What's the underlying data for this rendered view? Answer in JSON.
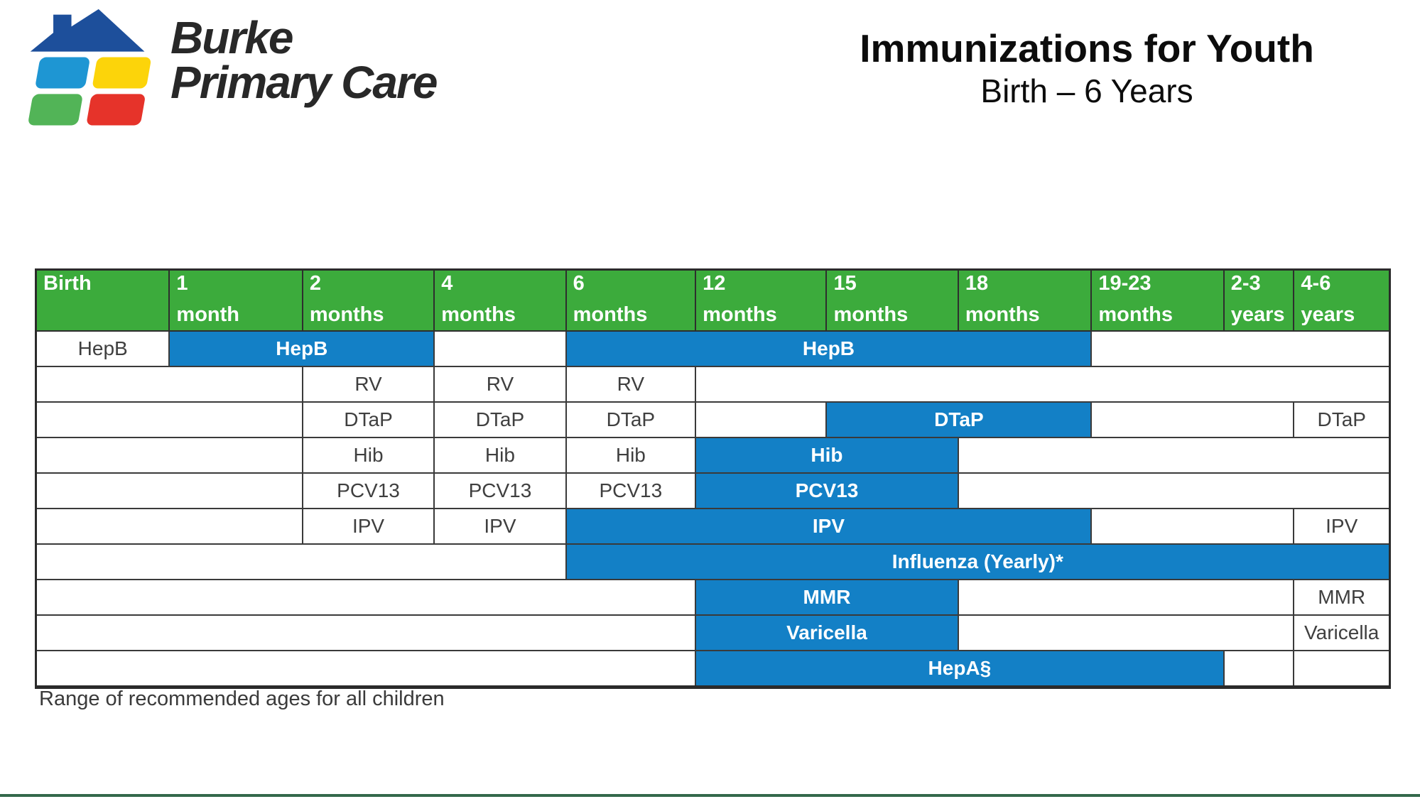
{
  "logo": {
    "line1": "Burke",
    "line2": "Primary Care"
  },
  "title": {
    "heading": "Immunizations for Youth",
    "subheading": "Birth – 6 Years"
  },
  "schedule_table": {
    "columns": [
      {
        "line1": "Birth",
        "line2": ""
      },
      {
        "line1": "1",
        "line2": "month"
      },
      {
        "line1": "2",
        "line2": "months"
      },
      {
        "line1": "4",
        "line2": "months"
      },
      {
        "line1": "6",
        "line2": "months"
      },
      {
        "line1": "12",
        "line2": "months"
      },
      {
        "line1": "15",
        "line2": "months"
      },
      {
        "line1": "18",
        "line2": "months"
      },
      {
        "line1": "19-23",
        "line2": "months"
      },
      {
        "line1": "2-3",
        "line2": "years"
      },
      {
        "line1": "4-6",
        "line2": "years"
      }
    ],
    "rows": [
      {
        "vaccine": "HepB",
        "cells": [
          {
            "span": 1,
            "kind": "label",
            "text": "HepB"
          },
          {
            "span": 2,
            "kind": "bar",
            "text": "HepB"
          },
          {
            "span": 1,
            "kind": "empty",
            "text": ""
          },
          {
            "span": 4,
            "kind": "bar",
            "text": "HepB"
          },
          {
            "span": 3,
            "kind": "empty",
            "text": ""
          }
        ]
      },
      {
        "vaccine": "RV",
        "cells": [
          {
            "span": 2,
            "kind": "empty",
            "text": ""
          },
          {
            "span": 1,
            "kind": "label",
            "text": "RV"
          },
          {
            "span": 1,
            "kind": "label",
            "text": "RV"
          },
          {
            "span": 1,
            "kind": "label",
            "text": "RV"
          },
          {
            "span": 6,
            "kind": "empty",
            "text": ""
          }
        ]
      },
      {
        "vaccine": "DTaP",
        "cells": [
          {
            "span": 2,
            "kind": "empty",
            "text": ""
          },
          {
            "span": 1,
            "kind": "label",
            "text": "DTaP"
          },
          {
            "span": 1,
            "kind": "label",
            "text": "DTaP"
          },
          {
            "span": 1,
            "kind": "label",
            "text": "DTaP"
          },
          {
            "span": 1,
            "kind": "empty",
            "text": ""
          },
          {
            "span": 2,
            "kind": "bar",
            "text": "DTaP"
          },
          {
            "span": 2,
            "kind": "empty",
            "text": ""
          },
          {
            "span": 1,
            "kind": "label",
            "text": "DTaP"
          }
        ]
      },
      {
        "vaccine": "Hib",
        "cells": [
          {
            "span": 2,
            "kind": "empty",
            "text": ""
          },
          {
            "span": 1,
            "kind": "label",
            "text": "Hib"
          },
          {
            "span": 1,
            "kind": "label",
            "text": "Hib"
          },
          {
            "span": 1,
            "kind": "label",
            "text": "Hib"
          },
          {
            "span": 2,
            "kind": "bar",
            "text": "Hib"
          },
          {
            "span": 4,
            "kind": "empty",
            "text": ""
          }
        ]
      },
      {
        "vaccine": "PCV13",
        "cells": [
          {
            "span": 2,
            "kind": "empty",
            "text": ""
          },
          {
            "span": 1,
            "kind": "label",
            "text": "PCV13"
          },
          {
            "span": 1,
            "kind": "label",
            "text": "PCV13"
          },
          {
            "span": 1,
            "kind": "label",
            "text": "PCV13"
          },
          {
            "span": 2,
            "kind": "bar",
            "text": "PCV13"
          },
          {
            "span": 4,
            "kind": "empty",
            "text": ""
          }
        ]
      },
      {
        "vaccine": "IPV",
        "cells": [
          {
            "span": 2,
            "kind": "empty",
            "text": ""
          },
          {
            "span": 1,
            "kind": "label",
            "text": "IPV"
          },
          {
            "span": 1,
            "kind": "label",
            "text": "IPV"
          },
          {
            "span": 4,
            "kind": "bar",
            "text": "IPV"
          },
          {
            "span": 2,
            "kind": "empty",
            "text": ""
          },
          {
            "span": 1,
            "kind": "label",
            "text": "IPV"
          }
        ]
      },
      {
        "vaccine": "Influenza",
        "cells": [
          {
            "span": 4,
            "kind": "empty",
            "text": ""
          },
          {
            "span": 7,
            "kind": "bar",
            "text": "Influenza (Yearly)*"
          }
        ]
      },
      {
        "vaccine": "MMR",
        "cells": [
          {
            "span": 5,
            "kind": "empty",
            "text": ""
          },
          {
            "span": 2,
            "kind": "bar",
            "text": "MMR"
          },
          {
            "span": 3,
            "kind": "empty",
            "text": ""
          },
          {
            "span": 1,
            "kind": "label",
            "text": "MMR"
          }
        ]
      },
      {
        "vaccine": "Varicella",
        "cells": [
          {
            "span": 5,
            "kind": "empty",
            "text": ""
          },
          {
            "span": 2,
            "kind": "bar",
            "text": "Varicella"
          },
          {
            "span": 3,
            "kind": "empty",
            "text": ""
          },
          {
            "span": 1,
            "kind": "label",
            "text": "Varicella"
          }
        ]
      },
      {
        "vaccine": "HepA",
        "cells": [
          {
            "span": 5,
            "kind": "empty",
            "text": ""
          },
          {
            "span": 4,
            "kind": "bar",
            "text": "HepA§"
          },
          {
            "span": 1,
            "kind": "empty",
            "text": ""
          },
          {
            "span": 1,
            "kind": "empty",
            "text": ""
          }
        ]
      }
    ]
  },
  "legend": {
    "note": "Range of recommended ages for all children"
  },
  "colors": {
    "header_green": "#3CAB3C",
    "bar_blue": "#1380C6",
    "grid_line": "#3a3a3a",
    "footer_rule_green": "#33684b",
    "logo_roof_blue": "#1d4f9b",
    "logo_tile_cyan": "#1e96d3",
    "logo_tile_yellow": "#fcd40a",
    "logo_tile_green": "#52b457",
    "logo_tile_red": "#e6332a"
  }
}
